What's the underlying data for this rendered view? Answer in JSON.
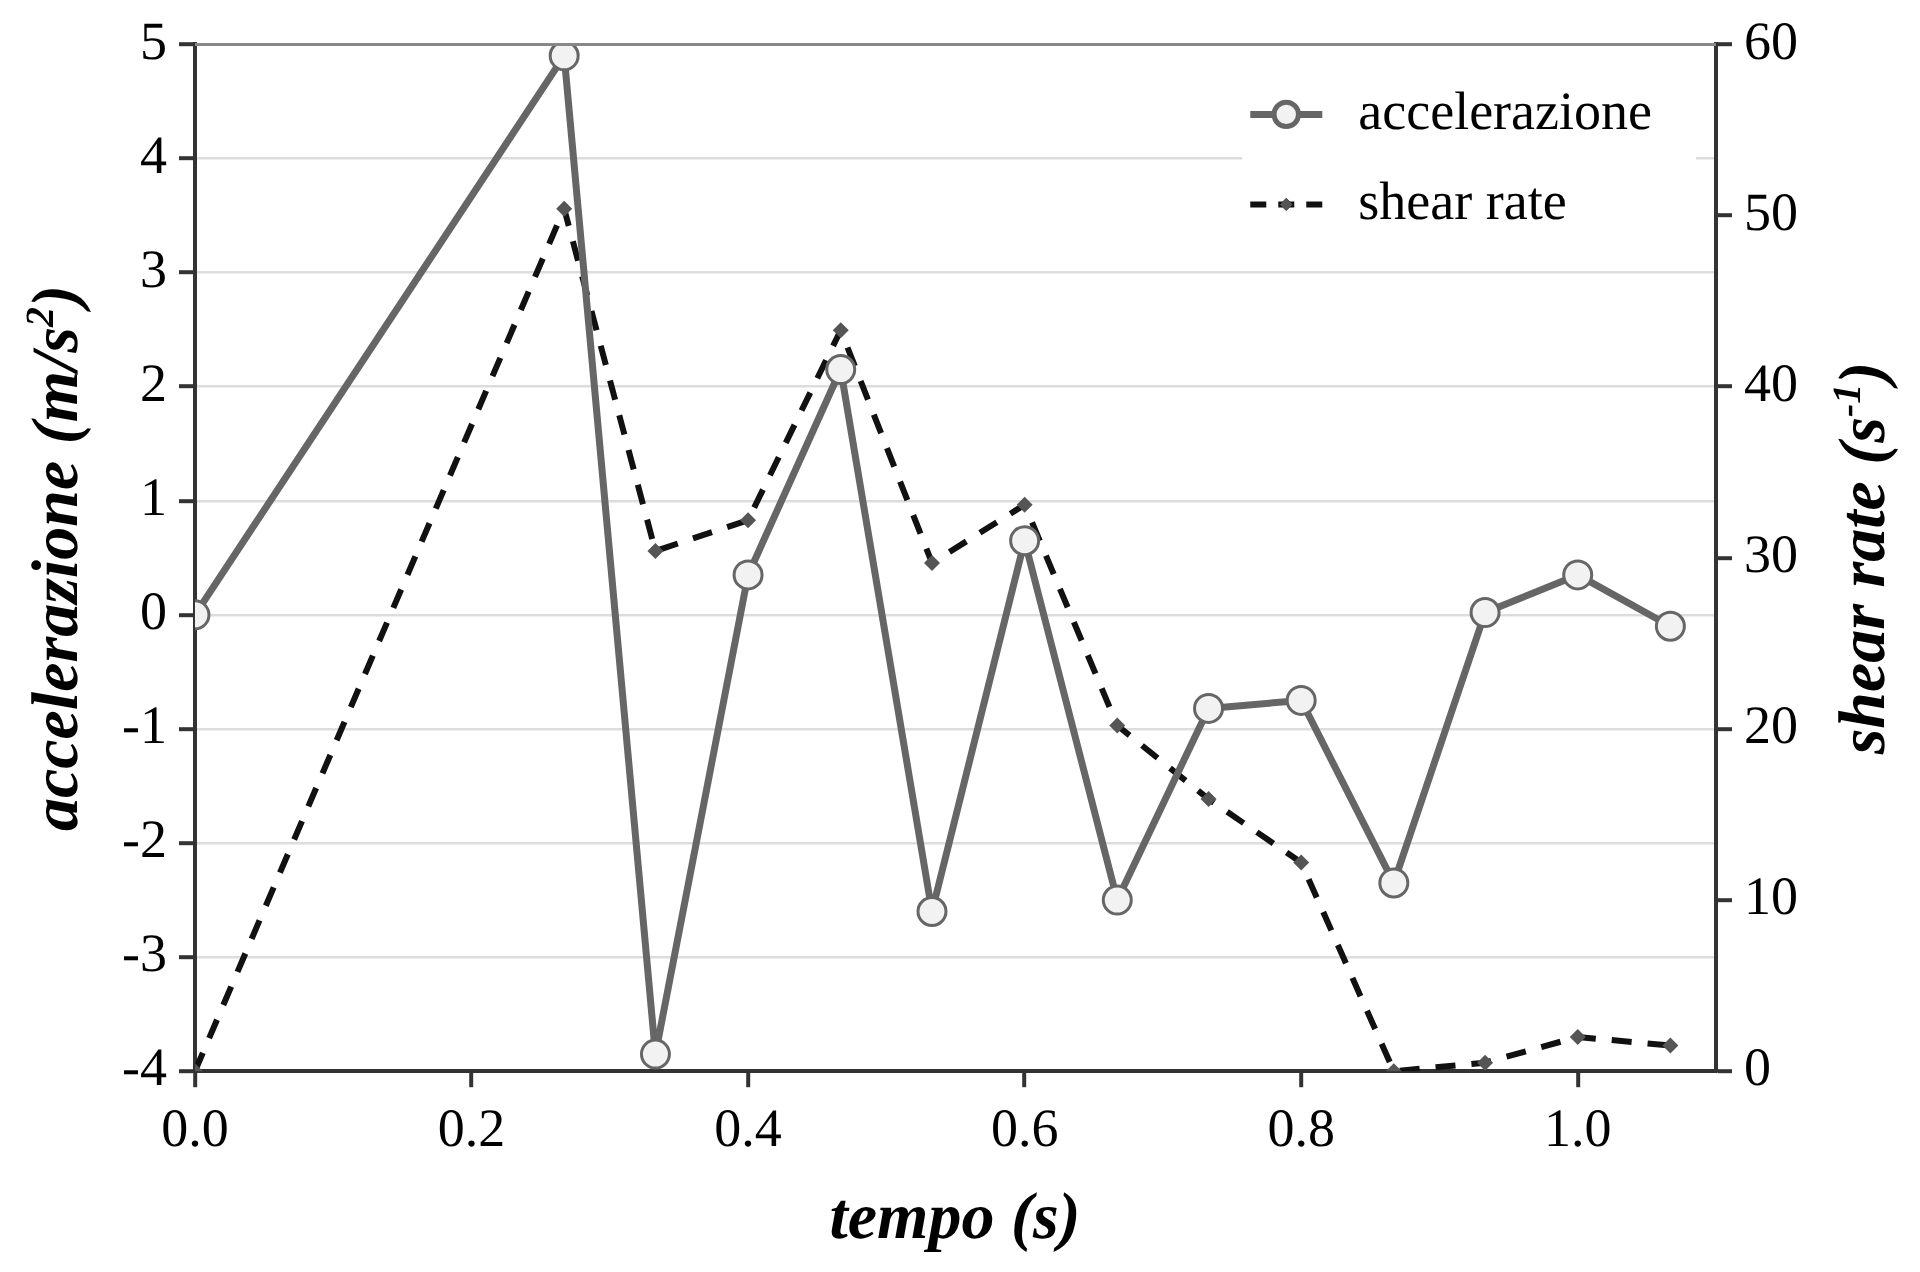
{
  "chart_data": {
    "type": "line",
    "xlabel": "tempo (s)",
    "ylabel": "accelerazione (m/s$^{2}$)",
    "y2label": "shear rate (s$^{-1}$)",
    "x": [
      0,
      0.267,
      0.333,
      0.4,
      0.467,
      0.533,
      0.6,
      0.667,
      0.733,
      0.8,
      0.867,
      0.933,
      1.0,
      1.067
    ],
    "series": [
      {
        "name": "accelerazione",
        "color": "#666666",
        "marker": "circle",
        "line_style": "solid",
        "values": [
          0,
          4.9,
          -3.85,
          0.35,
          2.15,
          -2.6,
          0.65,
          -2.5,
          -0.82,
          -0.75,
          -2.35,
          0.02,
          0.35,
          -0.1
        ]
      },
      {
        "name": "shear rate",
        "color": "#111111",
        "marker": "diamond",
        "line_style": "dashed",
        "axis": "y2",
        "values": [
          0,
          50.4,
          30.4,
          32.2,
          43.3,
          29.7,
          33.1,
          20.2,
          15.9,
          12.2,
          0,
          0.5,
          2.0,
          1.5
        ]
      }
    ],
    "xlim": [
      0,
      1.1
    ],
    "xticks": [
      {
        "value": 0,
        "label": "0.0"
      },
      0.2,
      0.4,
      0.6,
      0.8,
      {
        "value": 1,
        "label": "1.0"
      }
    ],
    "ylim": [
      -4,
      5
    ],
    "yticks": [
      -4,
      -3,
      -2,
      -1,
      0,
      1,
      2,
      3,
      4,
      5
    ],
    "y2lim": [
      0,
      60
    ],
    "y2ticks": [
      0,
      10,
      20,
      30,
      40,
      50,
      60
    ],
    "grid": "y",
    "legend": "top right"
  }
}
